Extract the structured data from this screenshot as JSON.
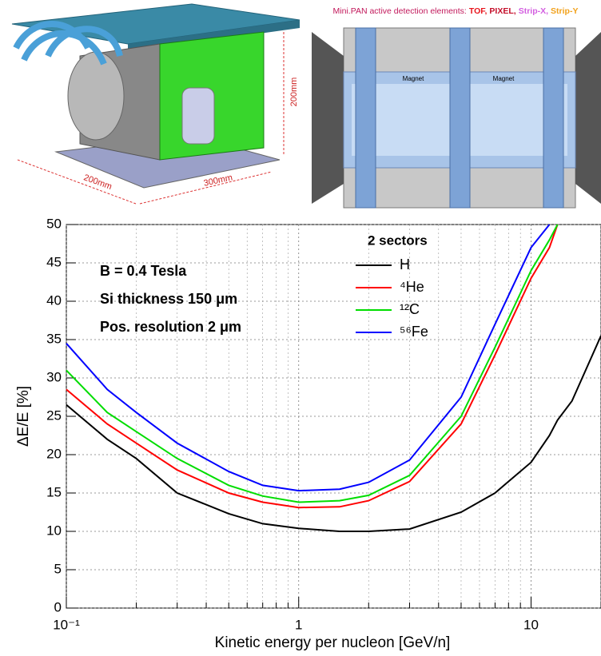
{
  "illustration": {
    "dimensions": [
      "200mm",
      "300mm",
      "200mm"
    ],
    "caption": {
      "text": "Mini.PAN active detection elements:",
      "items": [
        {
          "text": "TOF,",
          "color": "#e8141c"
        },
        {
          "text": "PIXEL,",
          "color": "#c40f2a"
        },
        {
          "text": "Strip-X,",
          "color": "#d35ee0"
        },
        {
          "text": "Strip-Y",
          "color": "#f2a21c"
        }
      ]
    },
    "magnets": [
      "Magnet",
      "Magnet"
    ]
  },
  "chart_data": {
    "type": "line",
    "log_x": true,
    "grid": true,
    "x_label": "Kinetic energy per nucleon [GeV/n]",
    "y_label": "ΔE/E [%]",
    "annotations": [
      "B = 0.4 Tesla",
      "Si thickness 150 μm",
      "Pos. resolution 2 μm"
    ],
    "legend_title": "2 sectors",
    "legend": "upper-center",
    "x": [
      0.1,
      0.15,
      0.2,
      0.3,
      0.5,
      0.7,
      1,
      1.5,
      2,
      3,
      5,
      7,
      10,
      12,
      13,
      15,
      20
    ],
    "series": [
      {
        "name": "H",
        "color": "#000000",
        "values": [
          26.5,
          22,
          19.5,
          15,
          12.3,
          11,
          10.4,
          10,
          10,
          10.3,
          12.5,
          15,
          19,
          22.5,
          24.5,
          27,
          35.5
        ]
      },
      {
        "name": "⁴He",
        "color": "#ff0000",
        "values": [
          28.5,
          24,
          21.5,
          18,
          15,
          13.8,
          13.1,
          13.2,
          14,
          16.5,
          24,
          33,
          43,
          47,
          50,
          null,
          null
        ]
      },
      {
        "name": "¹²C",
        "color": "#00dd00",
        "values": [
          31,
          25.5,
          23,
          19.5,
          16,
          14.6,
          13.8,
          14,
          14.7,
          17.3,
          25,
          34,
          44,
          48,
          50,
          null,
          null
        ]
      },
      {
        "name": "⁵⁶Fe",
        "color": "#0000ff",
        "values": [
          34.5,
          28.5,
          25.5,
          21.5,
          17.8,
          16,
          15.3,
          15.5,
          16.4,
          19.3,
          27.5,
          37,
          47,
          50,
          null,
          null,
          null
        ]
      }
    ],
    "xlim": [
      0.1,
      20
    ],
    "ylim": [
      0,
      50
    ],
    "xticks": [
      {
        "value": 0.1,
        "label": "10⁻¹"
      },
      1,
      10
    ],
    "x_minor_ticks": [
      0.2,
      0.3,
      0.4,
      0.5,
      0.6,
      0.7,
      0.8,
      0.9,
      2,
      3,
      4,
      5,
      6,
      7,
      8,
      9,
      20
    ],
    "yticks": [
      0,
      5,
      10,
      15,
      20,
      25,
      30,
      35,
      40,
      45,
      50
    ]
  }
}
